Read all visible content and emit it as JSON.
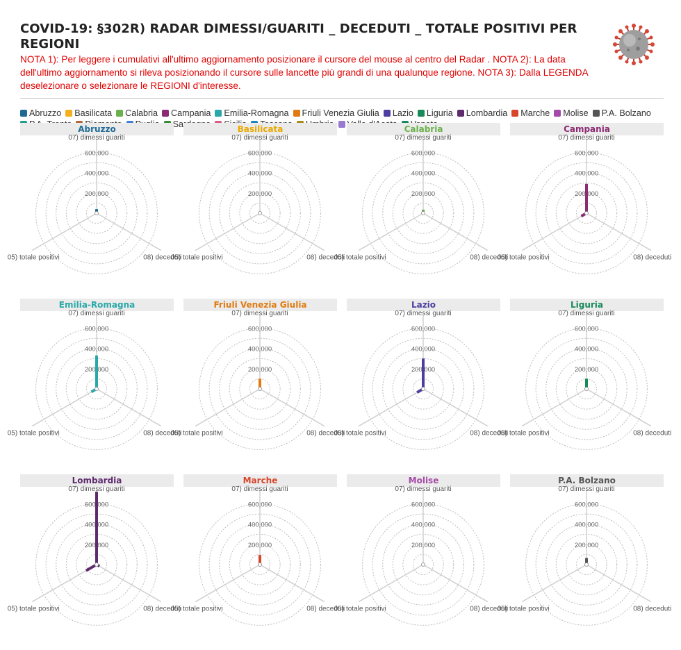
{
  "header": {
    "title": "COVID-19: §302R) RADAR DIMESSI/GUARITI _ DECEDUTI _ TOTALE POSITIVI PER REGIONI",
    "note": "NOTA 1): Per leggere i cumulativi all'ultimo aggiornamento posizionare il cursore del mouse al centro del Radar . NOTA 2): La data dell'ultimo aggiornamento si rileva posizionando il cursore sulle lancette più grandi di una qualunque regione. NOTA 3): Dalla LEGENDA deselezionare o selezionare le REGIONI d'interesse.",
    "icon": "coronavirus-icon"
  },
  "legend": [
    {
      "label": "Abruzzo",
      "color": "#1f6a94"
    },
    {
      "label": "Basilicata",
      "color": "#f2b01e"
    },
    {
      "label": "Calabria",
      "color": "#6ab04c"
    },
    {
      "label": "Campania",
      "color": "#8c2a72"
    },
    {
      "label": "Emilia-Romagna",
      "color": "#2aa8a8"
    },
    {
      "label": "Friuli Venezia Giulia",
      "color": "#e07b10"
    },
    {
      "label": "Lazio",
      "color": "#4b3ea0"
    },
    {
      "label": "Liguria",
      "color": "#178a5a"
    },
    {
      "label": "Lombardia",
      "color": "#5e2a6e"
    },
    {
      "label": "Marche",
      "color": "#d9452b"
    },
    {
      "label": "Molise",
      "color": "#a44aa8"
    },
    {
      "label": "P.A. Bolzano",
      "color": "#555555"
    },
    {
      "label": "P.A. Trento",
      "color": "#1f9e8e"
    },
    {
      "label": "Piemonte",
      "color": "#b5653a"
    },
    {
      "label": "Puglia",
      "color": "#3f7fd4"
    },
    {
      "label": "Sardegna",
      "color": "#3a8a3a"
    },
    {
      "label": "Sicilia",
      "color": "#d65a8a"
    },
    {
      "label": "Toscana",
      "color": "#1a86b8"
    },
    {
      "label": "Umbria",
      "color": "#a88a1a"
    },
    {
      "label": "Valle d'Aosta",
      "color": "#9a7ad0"
    },
    {
      "label": "Veneto",
      "color": "#118a60"
    }
  ],
  "chart_data": {
    "type": "radar",
    "axes": [
      "07) dimessi guariti",
      "08) deceduti",
      "05) totale positivi"
    ],
    "rlim": [
      0,
      700000
    ],
    "ticks": [
      200000,
      400000,
      600000
    ],
    "tick_labels": [
      "200,000",
      "400,000",
      "600,000"
    ],
    "panels": [
      {
        "region": "Abruzzo",
        "color": "#1f6a94",
        "values": [
          40000,
          3000,
          15000
        ]
      },
      {
        "region": "Basilicata",
        "color": "#e8a800",
        "values": [
          12000,
          600,
          4000
        ]
      },
      {
        "region": "Calabria",
        "color": "#6ab04c",
        "values": [
          35000,
          1500,
          15000
        ]
      },
      {
        "region": "Campania",
        "color": "#8c2a72",
        "values": [
          290000,
          7000,
          60000
        ]
      },
      {
        "region": "Emilia-Romagna",
        "color": "#2aa8a8",
        "values": [
          330000,
          13000,
          60000
        ]
      },
      {
        "region": "Friuli Venezia Giulia",
        "color": "#e07b10",
        "values": [
          100000,
          3800,
          10000
        ]
      },
      {
        "region": "Lazio",
        "color": "#4b3ea0",
        "values": [
          300000,
          8000,
          70000
        ]
      },
      {
        "region": "Liguria",
        "color": "#178a5a",
        "values": [
          100000,
          4300,
          15000
        ]
      },
      {
        "region": "Lombardia",
        "color": "#5e2a6e",
        "values": [
          720000,
          33000,
          120000
        ]
      },
      {
        "region": "Marche",
        "color": "#d9452b",
        "values": [
          95000,
          3000,
          15000
        ]
      },
      {
        "region": "Molise",
        "color": "#a44aa8",
        "values": [
          12000,
          500,
          3000
        ]
      },
      {
        "region": "P.A. Bolzano",
        "color": "#555555",
        "values": [
          65000,
          1200,
          8000
        ]
      }
    ]
  }
}
